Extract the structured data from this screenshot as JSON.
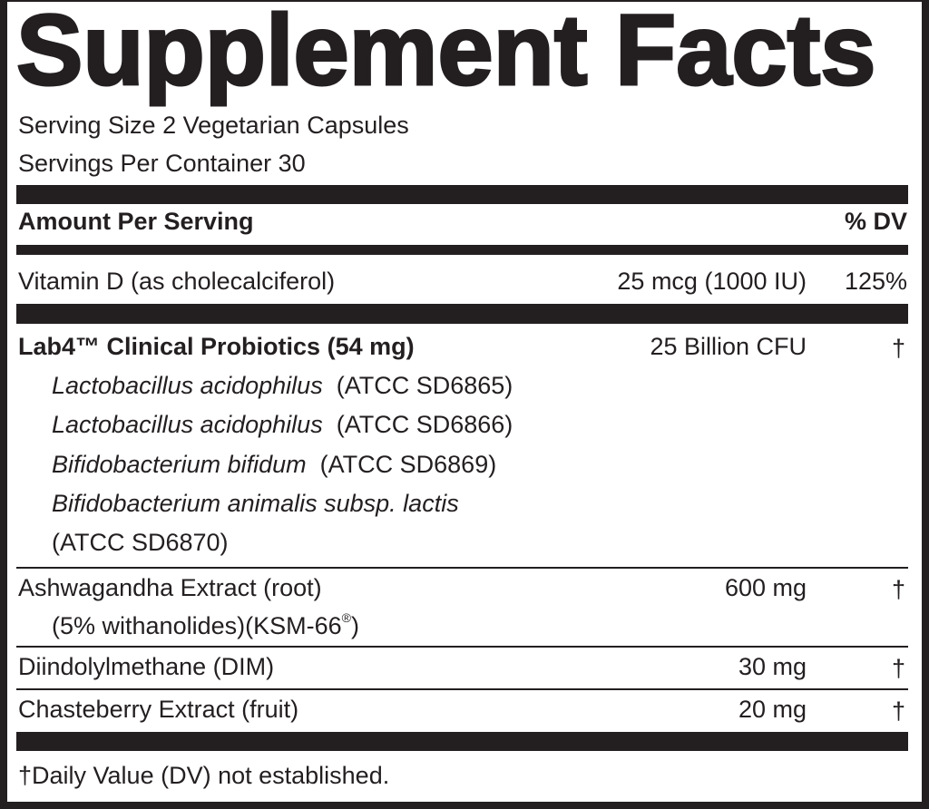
{
  "title": "Supplement Facts",
  "serving_size": "Serving Size 2 Vegetarian Capsules",
  "servings_per_container": "Servings Per Container 30",
  "header": {
    "amount_per_serving": "Amount Per Serving",
    "dv": "% DV"
  },
  "vitamin_d": {
    "name": "Vitamin D (as cholecalciferol)",
    "amount": "25 mcg (1000 IU)",
    "dv": "125%"
  },
  "probiotics": {
    "name": "Lab4™ Clinical Probiotics (54 mg)",
    "amount": "25 Billion CFU",
    "dv": "†",
    "strains": [
      {
        "species": "Lactobacillus acidophilus",
        "code": "(ATCC SD6865)"
      },
      {
        "species": "Lactobacillus acidophilus",
        "code": "(ATCC SD6866)"
      },
      {
        "species": "Bifidobacterium bifidum",
        "code": "(ATCC SD6869)"
      },
      {
        "species": "Bifidobacterium animalis subsp. lactis",
        "code": "(ATCC SD6870)"
      }
    ]
  },
  "ashwagandha": {
    "name": "Ashwagandha Extract (root)",
    "detail": "(5% withanolides)(KSM-66",
    "registered": "®",
    "detail_end": ")",
    "amount": "600 mg",
    "dv": "†"
  },
  "dim": {
    "name": "Diindolylmethane (DIM)",
    "amount": "30 mg",
    "dv": "†"
  },
  "chasteberry": {
    "name": "Chasteberry Extract (fruit)",
    "amount": "20 mg",
    "dv": "†"
  },
  "footnote": "†Daily Value (DV) not established."
}
